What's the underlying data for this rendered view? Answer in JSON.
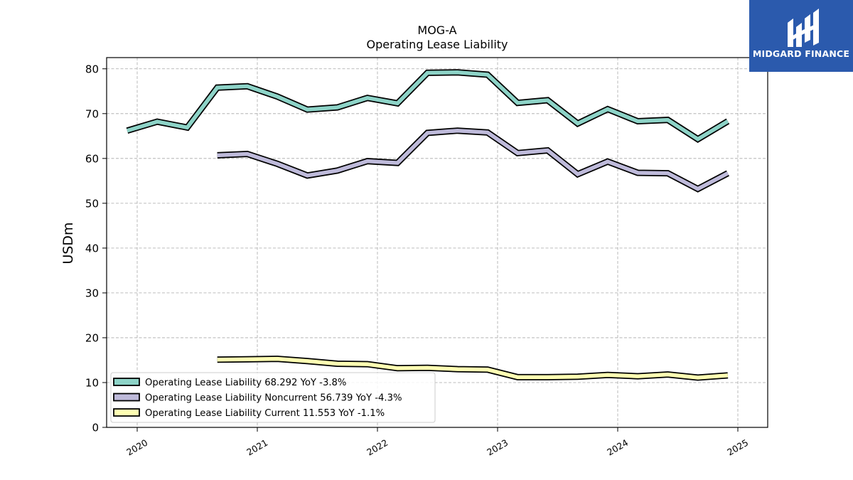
{
  "chart_data": {
    "type": "line",
    "title": "MOG-A",
    "subtitle": "Operating Lease Liability",
    "xlabel": "",
    "ylabel": "USDm",
    "ylim": [
      0,
      82.5
    ],
    "yticks": [
      0,
      10,
      20,
      30,
      40,
      50,
      60,
      70,
      80
    ],
    "xticks": [
      "2020",
      "2021",
      "2022",
      "2023",
      "2024",
      "2025"
    ],
    "grid": true,
    "legend_position": "lower-left",
    "x": [
      "2019-12",
      "2020-03",
      "2020-06",
      "2020-09",
      "2020-12",
      "2021-03",
      "2021-06",
      "2021-09",
      "2021-12",
      "2022-03",
      "2022-06",
      "2022-09",
      "2022-12",
      "2023-03",
      "2023-06",
      "2023-09",
      "2023-12",
      "2024-03",
      "2024-06",
      "2024-09",
      "2024-12"
    ],
    "series": [
      {
        "name": "Operating Lease Liability",
        "legend_label": "Operating Lease Liability  68.292 YoY -3.8%",
        "color": "#8dd3c7",
        "values": [
          66.2,
          68.2,
          66.9,
          75.8,
          76.1,
          73.8,
          70.9,
          71.4,
          73.5,
          72.3,
          79.1,
          79.2,
          78.7,
          72.4,
          73.0,
          67.8,
          71.0,
          68.3,
          68.6,
          64.3,
          68.3
        ]
      },
      {
        "name": "Operating Lease Liability Noncurrent",
        "legend_label": "Operating Lease Liability Noncurrent  56.739 YoY -4.3%",
        "color": "#bebada",
        "values": [
          null,
          null,
          null,
          60.7,
          61.0,
          58.8,
          56.2,
          57.3,
          59.4,
          59.0,
          65.7,
          66.2,
          65.8,
          61.2,
          61.8,
          56.5,
          59.3,
          56.8,
          56.7,
          53.2,
          56.7
        ]
      },
      {
        "name": "Operating Lease Liability Current",
        "legend_label": "Operating Lease Liability Current  11.553 YoY -1.1%",
        "color": "#ffffb3",
        "values": [
          null,
          null,
          null,
          15.1,
          15.2,
          15.3,
          14.8,
          14.2,
          14.1,
          13.2,
          13.3,
          13.0,
          12.9,
          11.2,
          11.2,
          11.3,
          11.7,
          11.4,
          11.8,
          11.1,
          11.6
        ]
      }
    ]
  },
  "logo": {
    "text": "MIDGARD FINANCE"
  }
}
